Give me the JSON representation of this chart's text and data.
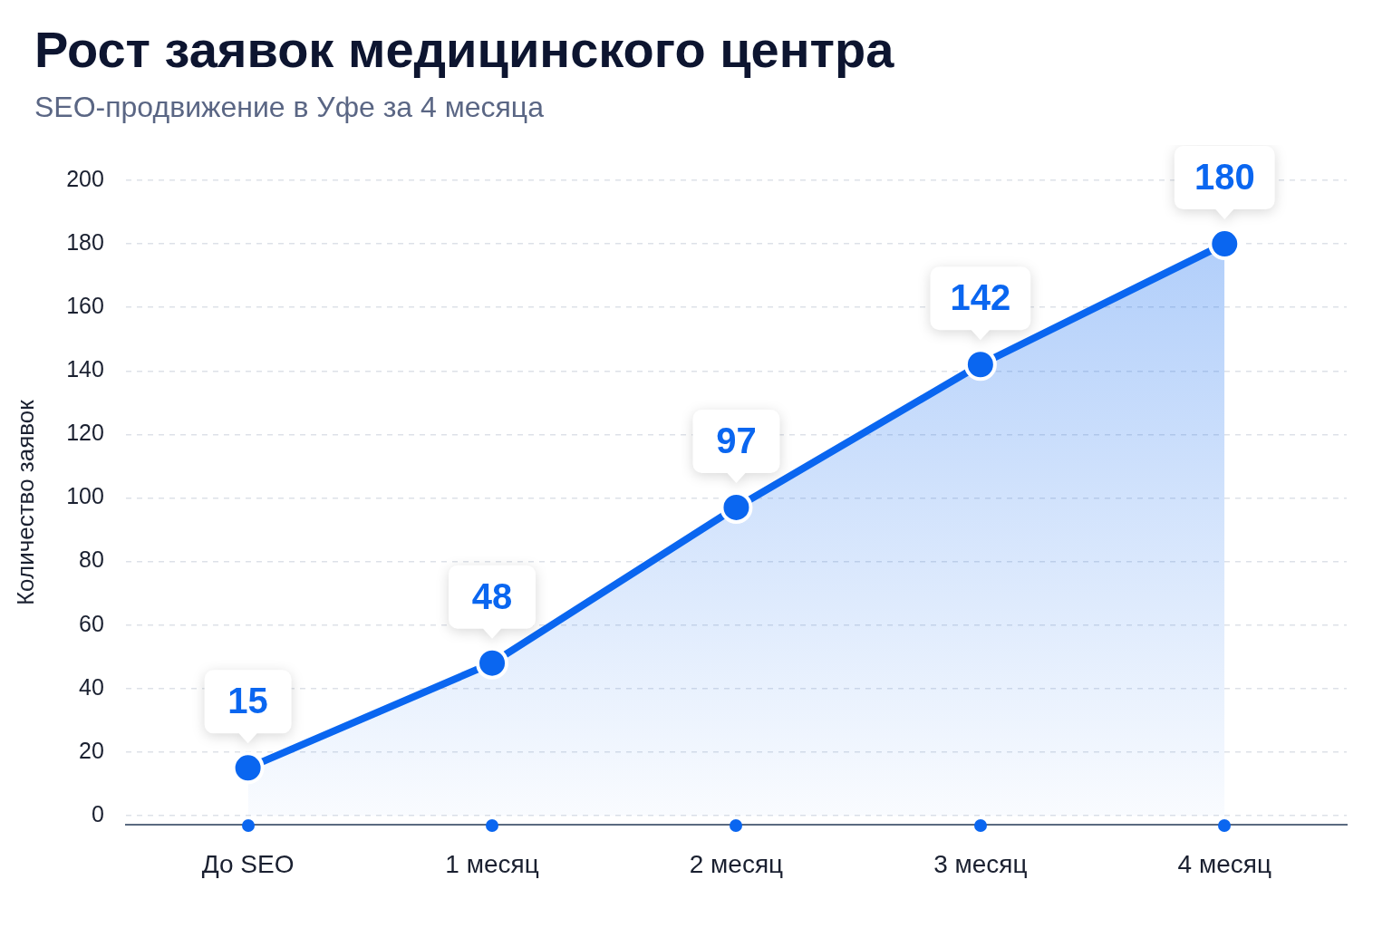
{
  "chart_data": {
    "type": "area",
    "title": "Рост заявок медицинского центра",
    "subtitle": "SEO-продвижение в Уфе за 4 месяца",
    "ylabel": "Количество заявок",
    "categories": [
      "До SEO",
      "1 месяц",
      "2 месяц",
      "3 месяц",
      "4 месяц"
    ],
    "values": [
      15,
      48,
      97,
      142,
      180
    ],
    "color": "#0a66f0",
    "ylim": [
      -3,
      200
    ],
    "yticks": [
      0,
      20,
      40,
      60,
      80,
      100,
      120,
      140,
      160,
      180,
      200
    ],
    "grid": "y",
    "data_labels": true,
    "marker": "circle",
    "line_style": "solid"
  }
}
